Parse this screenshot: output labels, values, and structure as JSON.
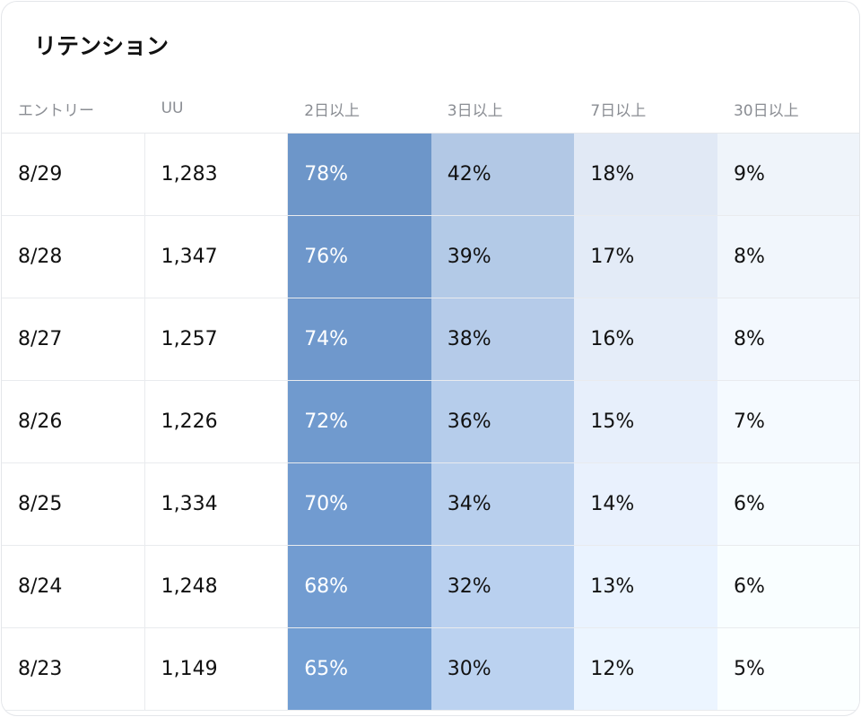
{
  "header": {
    "title": "リテンション"
  },
  "table": {
    "columns": [
      "エントリー",
      "UU",
      "2日以上",
      "3日以上",
      "7日以上",
      "30日以上"
    ],
    "rows": [
      [
        "8/29",
        "1,283",
        "78%",
        "42%",
        "18%",
        "9%"
      ],
      [
        "8/28",
        "1,347",
        "76%",
        "39%",
        "17%",
        "8%"
      ],
      [
        "8/27",
        "1,257",
        "74%",
        "38%",
        "16%",
        "8%"
      ],
      [
        "8/26",
        "1,226",
        "72%",
        "36%",
        "15%",
        "7%"
      ],
      [
        "8/25",
        "1,334",
        "70%",
        "34%",
        "14%",
        "6%"
      ],
      [
        "8/24",
        "1,248",
        "68%",
        "32%",
        "13%",
        "6%"
      ],
      [
        "8/23",
        "1,149",
        "65%",
        "30%",
        "12%",
        "5%"
      ]
    ]
  }
}
